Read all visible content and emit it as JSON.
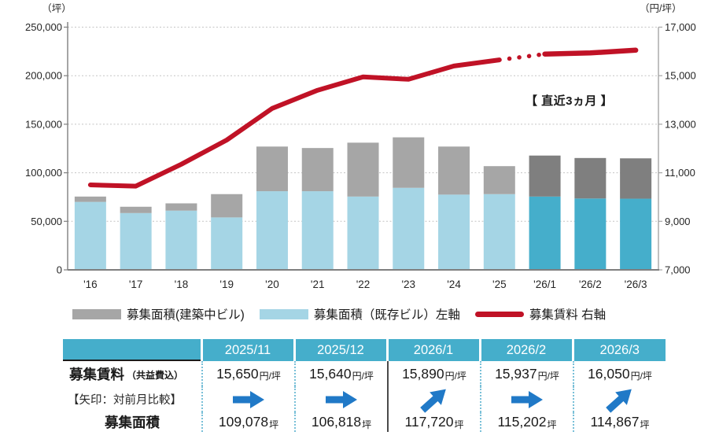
{
  "chart": {
    "left_axis_unit": "（坪）",
    "right_axis_unit": "（円/坪）",
    "left_ticks": [
      "250,000",
      "200,000",
      "150,000",
      "100,000",
      "50,000",
      "0"
    ],
    "right_ticks": [
      "17,000",
      "15,000",
      "13,000",
      "11,000",
      "9,000",
      "7,000"
    ],
    "annotation": "【 直近3ヵ月 】",
    "legend": [
      {
        "label": "募集面積(建築中ビル)",
        "swatch": "gray-bar"
      },
      {
        "label": "募集面積（既存ビル）左軸",
        "swatch": "lightblue-bar"
      },
      {
        "label": "募集賃料 右軸",
        "swatch": "red-line"
      }
    ]
  },
  "chart_data": {
    "type": "combo-stacked-bar-line",
    "title": "",
    "categories": [
      "'16",
      "'17",
      "'18",
      "'19",
      "'20",
      "'21",
      "'22",
      "'23",
      "'24",
      "'25",
      "'26/1",
      "'26/2",
      "'26/3"
    ],
    "series": [
      {
        "name": "募集面積（既存ビル）左軸",
        "type": "bar",
        "axis": "left",
        "values": [
          70000,
          58500,
          61000,
          54000,
          81000,
          81000,
          75500,
          84500,
          77500,
          78000,
          75500,
          73500,
          73300
        ]
      },
      {
        "name": "募集面積(建築中ビル)",
        "type": "bar",
        "axis": "left",
        "values": [
          5500,
          6500,
          7500,
          24000,
          46000,
          44500,
          55500,
          52000,
          49500,
          28818,
          42220,
          41702,
          41567
        ]
      },
      {
        "name": "募集賃料 右軸",
        "type": "line",
        "axis": "right",
        "values": [
          10500,
          10450,
          11350,
          12350,
          13650,
          14400,
          14950,
          14850,
          15400,
          15650,
          15890,
          15937,
          16050
        ]
      }
    ],
    "left_axis": {
      "label": "（坪）",
      "min": 0,
      "max": 250000,
      "step": 50000
    },
    "right_axis": {
      "label": "（円/坪）",
      "min": 7000,
      "max": 17000,
      "step": 2000
    },
    "grid": "horizontal-dotted",
    "legend_position": "bottom",
    "recent_start_index": 10,
    "dotted_line_segment": [
      9,
      10
    ],
    "annotation": "【 直近3ヵ月 】 (last 3 months highlighted with darker bars)"
  },
  "table": {
    "columns": [
      "2025/11",
      "2025/12",
      "2026/1",
      "2026/2",
      "2026/3"
    ],
    "rows": {
      "rent": {
        "label": "募集賃料",
        "label_note": "（共益費込）",
        "values": [
          "15,650",
          "15,640",
          "15,890",
          "15,937",
          "16,050"
        ],
        "unit": "円/坪"
      },
      "arrows": {
        "label": "【矢印：対前月比較】",
        "directions": [
          "right",
          "right",
          "up-right",
          "right",
          "up-right"
        ]
      },
      "area": {
        "label": "募集面積",
        "values": [
          "109,078",
          "106,818",
          "117,720",
          "115,202",
          "114,867"
        ],
        "unit": "坪"
      }
    }
  },
  "colors": {
    "bar_light_blue": "#a5d5e5",
    "bar_dark_blue": "#45aecb",
    "bar_light_gray": "#a6a6a6",
    "bar_dark_gray": "#7f7f7f",
    "line_red": "#c01226",
    "header_teal": "#45aecb",
    "table_dot": "#79c0d8",
    "arrow_blue": "#2079c7",
    "grid_gray": "#c4c4c4",
    "axis_gray": "#7f7f7f"
  }
}
